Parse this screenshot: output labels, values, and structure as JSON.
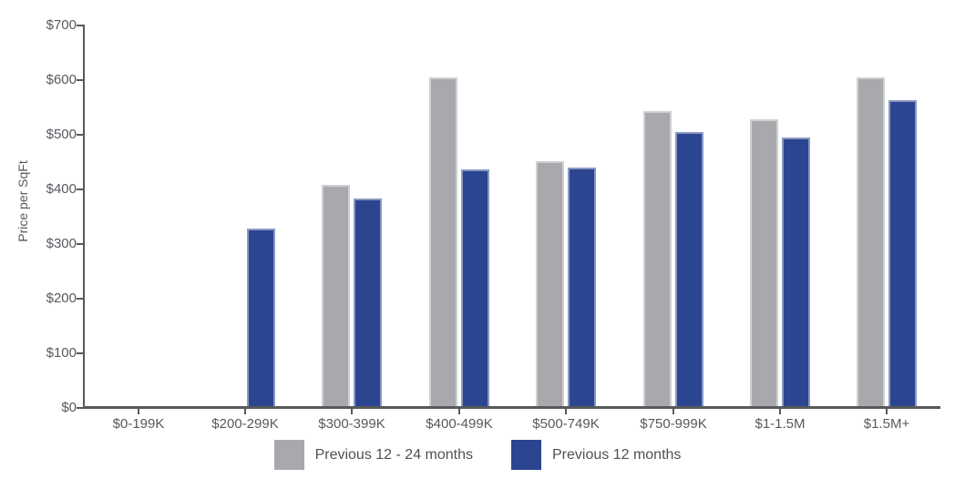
{
  "chart_data": {
    "type": "bar",
    "title": "",
    "xlabel": "",
    "ylabel": "Price per SqFt",
    "categories": [
      "$0-199K",
      "$200-299K",
      "$300-399K",
      "$400-499K",
      "$500-749K",
      "$750-999K",
      "$1-1.5M",
      "$1.5M+"
    ],
    "series": [
      {
        "name": "Previous 12 - 24 months",
        "color": "#a7a9ac",
        "values": [
          null,
          null,
          407,
          605,
          451,
          542,
          528,
          604
        ]
      },
      {
        "name": "Previous 12 months",
        "color": "#2b4591",
        "values": [
          null,
          328,
          382,
          436,
          439,
          505,
          495,
          563
        ]
      }
    ],
    "ylim": [
      0,
      700
    ],
    "ytick_step": 100,
    "ytick_labels": [
      "$0",
      "$100",
      "$200",
      "$300",
      "$400",
      "$500",
      "$600",
      "$700"
    ],
    "grid": false,
    "legend_position": "bottom",
    "axis_color": "#58595b",
    "text_color": "#56585e"
  }
}
